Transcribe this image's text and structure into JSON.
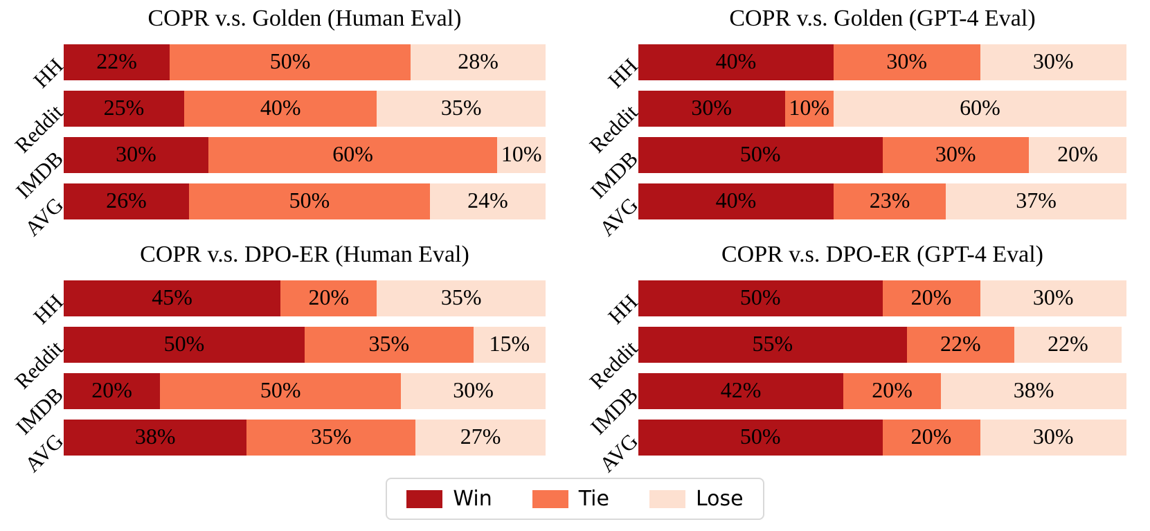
{
  "figure": {
    "background": "#ffffff"
  },
  "colors": {
    "win": "#b01318",
    "tie": "#f8764f",
    "lose": "#fde0d0"
  },
  "legend": {
    "position": "bottom-center",
    "items": [
      {
        "label": "Win",
        "color_key": "win"
      },
      {
        "label": "Tie",
        "color_key": "tie"
      },
      {
        "label": "Lose",
        "color_key": "lose"
      }
    ]
  },
  "chart_data": [
    {
      "type": "bar",
      "stacked": true,
      "orientation": "horizontal",
      "title": "COPR v.s. Golden (Human Eval)",
      "categories": [
        "HH",
        "Reddit",
        "IMDB",
        "AVG"
      ],
      "series": [
        {
          "name": "Win",
          "color_key": "win",
          "values": [
            22,
            25,
            30,
            26
          ]
        },
        {
          "name": "Tie",
          "color_key": "tie",
          "values": [
            50,
            40,
            60,
            50
          ]
        },
        {
          "name": "Lose",
          "color_key": "lose",
          "values": [
            28,
            35,
            10,
            24
          ]
        }
      ],
      "value_suffix": "%",
      "xlim": [
        0,
        100
      ],
      "grid": false
    },
    {
      "type": "bar",
      "stacked": true,
      "orientation": "horizontal",
      "title": "COPR v.s. Golden (GPT-4 Eval)",
      "categories": [
        "HH",
        "Reddit",
        "IMDB",
        "AVG"
      ],
      "series": [
        {
          "name": "Win",
          "color_key": "win",
          "values": [
            40,
            30,
            50,
            40
          ]
        },
        {
          "name": "Tie",
          "color_key": "tie",
          "values": [
            30,
            10,
            30,
            23
          ]
        },
        {
          "name": "Lose",
          "color_key": "lose",
          "values": [
            30,
            60,
            20,
            37
          ]
        }
      ],
      "value_suffix": "%",
      "xlim": [
        0,
        100
      ],
      "grid": false
    },
    {
      "type": "bar",
      "stacked": true,
      "orientation": "horizontal",
      "title": "COPR v.s. DPO-ER (Human Eval)",
      "categories": [
        "HH",
        "Reddit",
        "IMDB",
        "AVG"
      ],
      "series": [
        {
          "name": "Win",
          "color_key": "win",
          "values": [
            45,
            50,
            20,
            38
          ]
        },
        {
          "name": "Tie",
          "color_key": "tie",
          "values": [
            20,
            35,
            50,
            35
          ]
        },
        {
          "name": "Lose",
          "color_key": "lose",
          "values": [
            35,
            15,
            30,
            27
          ]
        }
      ],
      "value_suffix": "%",
      "xlim": [
        0,
        100
      ],
      "grid": false
    },
    {
      "type": "bar",
      "stacked": true,
      "orientation": "horizontal",
      "title": "COPR v.s. DPO-ER (GPT-4 Eval)",
      "categories": [
        "HH",
        "Reddit",
        "IMDB",
        "AVG"
      ],
      "series": [
        {
          "name": "Win",
          "color_key": "win",
          "values": [
            50,
            55,
            42,
            50
          ]
        },
        {
          "name": "Tie",
          "color_key": "tie",
          "values": [
            20,
            22,
            20,
            20
          ]
        },
        {
          "name": "Lose",
          "color_key": "lose",
          "values": [
            30,
            22,
            38,
            30
          ]
        }
      ],
      "value_suffix": "%",
      "xlim": [
        0,
        100
      ],
      "grid": false
    }
  ]
}
